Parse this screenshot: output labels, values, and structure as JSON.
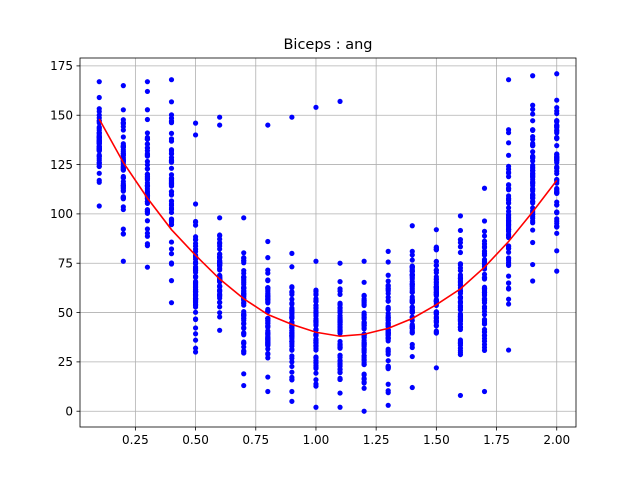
{
  "chart_data": {
    "type": "scatter",
    "title": "Biceps : ang",
    "xlabel": "",
    "ylabel": "",
    "xlim": [
      0.02,
      2.08
    ],
    "ylim": [
      -8,
      179
    ],
    "grid": true,
    "x_ticks": [
      0.25,
      0.5,
      0.75,
      1.0,
      1.25,
      1.5,
      1.75,
      2.0
    ],
    "x_tick_labels": [
      "0.25",
      "0.50",
      "0.75",
      "1.00",
      "1.25",
      "1.50",
      "1.75",
      "2.00"
    ],
    "y_ticks": [
      0,
      25,
      50,
      75,
      100,
      125,
      150,
      175
    ],
    "y_tick_labels": [
      "0",
      "25",
      "50",
      "75",
      "100",
      "125",
      "150",
      "175"
    ],
    "colors": {
      "points": "#0000ff",
      "fit_line": "#ff0000",
      "grid": "#b0b0b0"
    },
    "series": [
      {
        "kind": "points",
        "columns": [
          {
            "x": 0.1,
            "min": 104,
            "max": 167,
            "n": 55
          },
          {
            "x": 0.2,
            "min": 76,
            "max": 165,
            "n": 55
          },
          {
            "x": 0.3,
            "min": 73,
            "max": 167,
            "n": 55
          },
          {
            "x": 0.4,
            "min": 55,
            "max": 168,
            "n": 60
          },
          {
            "x": 0.5,
            "min": 30,
            "max": 105,
            "n": 60
          },
          {
            "x": 0.6,
            "min": 41,
            "max": 98,
            "n": 60
          },
          {
            "x": 0.7,
            "min": 13,
            "max": 98,
            "n": 60
          },
          {
            "x": 0.8,
            "min": 10,
            "max": 86,
            "n": 60
          },
          {
            "x": 0.9,
            "min": 5,
            "max": 80,
            "n": 60
          },
          {
            "x": 1.0,
            "min": 2,
            "max": 76,
            "n": 60
          },
          {
            "x": 1.1,
            "min": 2,
            "max": 75,
            "n": 60
          },
          {
            "x": 1.2,
            "min": 0,
            "max": 76,
            "n": 60
          },
          {
            "x": 1.3,
            "min": 3,
            "max": 81,
            "n": 60
          },
          {
            "x": 1.4,
            "min": 12,
            "max": 94,
            "n": 60
          },
          {
            "x": 1.5,
            "min": 22,
            "max": 92,
            "n": 60
          },
          {
            "x": 1.6,
            "min": 8,
            "max": 99,
            "n": 60
          },
          {
            "x": 1.7,
            "min": 10,
            "max": 113,
            "n": 60
          },
          {
            "x": 1.8,
            "min": 31,
            "max": 168,
            "n": 60
          },
          {
            "x": 1.9,
            "min": 66,
            "max": 170,
            "n": 60
          },
          {
            "x": 2.0,
            "min": 71,
            "max": 171,
            "n": 60
          }
        ],
        "outliers": [
          {
            "x": 0.5,
            "y": 146
          },
          {
            "x": 0.5,
            "y": 140
          },
          {
            "x": 0.6,
            "y": 149
          },
          {
            "x": 0.6,
            "y": 145
          },
          {
            "x": 0.8,
            "y": 145
          },
          {
            "x": 0.9,
            "y": 149
          },
          {
            "x": 1.0,
            "y": 154
          },
          {
            "x": 1.1,
            "y": 157
          }
        ]
      },
      {
        "kind": "fit",
        "x": [
          0.1,
          0.2,
          0.3,
          0.4,
          0.5,
          0.6,
          0.7,
          0.8,
          0.9,
          1.0,
          1.1,
          1.2,
          1.3,
          1.4,
          1.5,
          1.6,
          1.7,
          1.8,
          1.9,
          2.0
        ],
        "y": [
          148,
          126,
          108,
          92,
          79,
          67,
          57,
          49,
          44,
          40,
          38,
          39,
          42,
          47,
          54,
          62,
          73,
          86,
          101,
          117
        ]
      }
    ]
  }
}
